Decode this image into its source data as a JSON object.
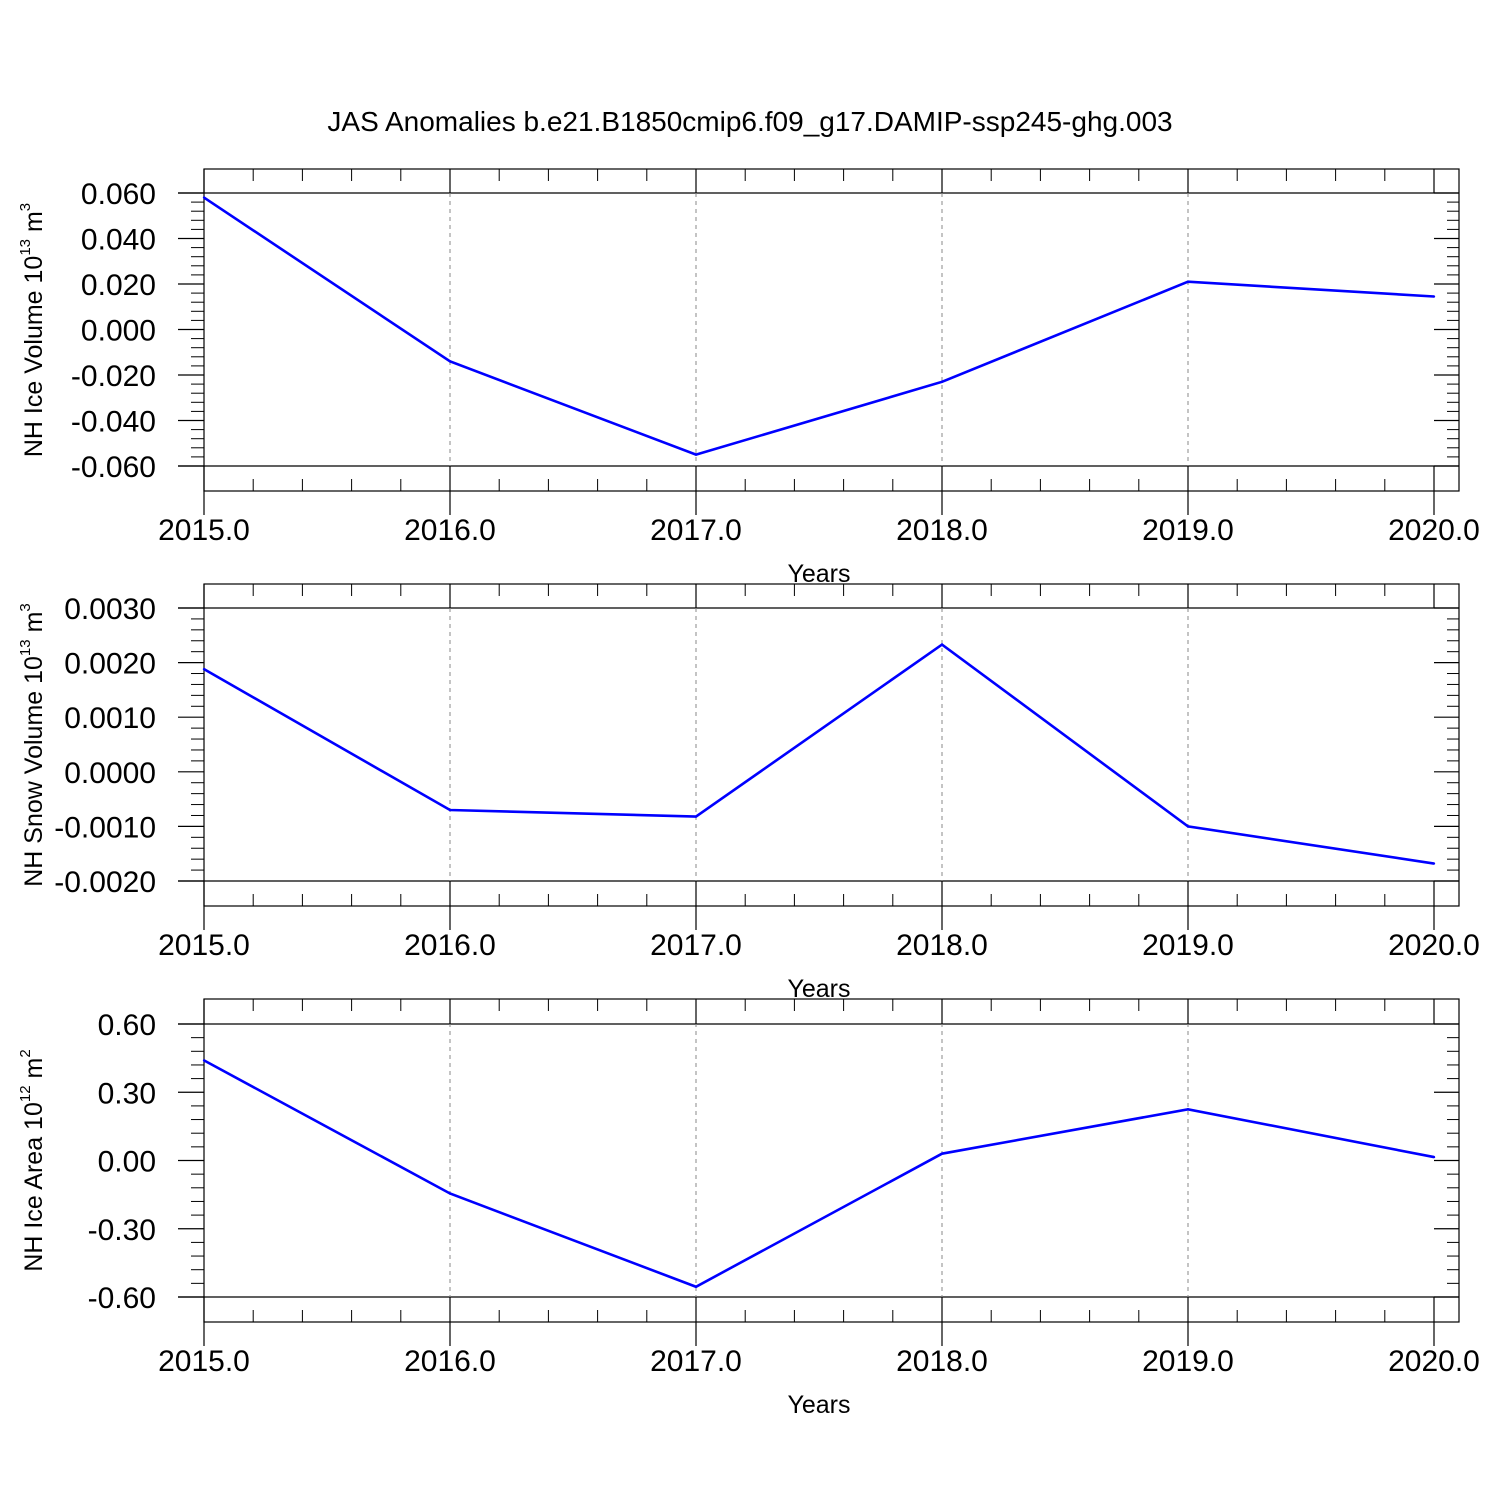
{
  "figure": {
    "title": "JAS Anomalies b.e21.B1850cmip6.f09_g17.DAMIP-ssp245-ghg.003",
    "line_color": "#0000ff"
  },
  "chart_data": [
    {
      "type": "line",
      "xlabel": "Years",
      "ylabel": {
        "prefix": "NH Ice Volume 10",
        "exponent": "13",
        "unit": " m",
        "unit_exponent": "3"
      },
      "xlim": [
        2015.0,
        2020.0
      ],
      "ylim": [
        -0.06,
        0.06
      ],
      "xticks": [
        "2015.0",
        "2016.0",
        "2017.0",
        "2018.0",
        "2019.0",
        "2020.0"
      ],
      "yticks": [
        "0.060",
        "0.040",
        "0.020",
        "0.000",
        "-0.020",
        "-0.040",
        "-0.060"
      ],
      "ytick_values": [
        0.06,
        0.04,
        0.02,
        0.0,
        -0.02,
        -0.04,
        -0.06
      ],
      "grid": "vertical-dashed",
      "series": [
        {
          "x": [
            2015,
            2016,
            2017,
            2018,
            2019,
            2020
          ],
          "values": [
            0.058,
            -0.014,
            -0.055,
            -0.023,
            0.021,
            0.0145
          ]
        }
      ]
    },
    {
      "type": "line",
      "xlabel": "Years",
      "ylabel": {
        "prefix": "NH Snow Volume 10",
        "exponent": "13",
        "unit": " m",
        "unit_exponent": "3"
      },
      "xlim": [
        2015.0,
        2020.0
      ],
      "ylim": [
        -0.002,
        0.003
      ],
      "xticks": [
        "2015.0",
        "2016.0",
        "2017.0",
        "2018.0",
        "2019.0",
        "2020.0"
      ],
      "yticks": [
        "0.0030",
        "0.0020",
        "0.0010",
        "0.0000",
        "-0.0010",
        "-0.0020"
      ],
      "ytick_values": [
        0.003,
        0.002,
        0.001,
        0.0,
        -0.001,
        -0.002
      ],
      "grid": "vertical-dashed",
      "series": [
        {
          "x": [
            2015,
            2016,
            2017,
            2018,
            2019,
            2020
          ],
          "values": [
            0.00188,
            -0.0007,
            -0.00082,
            0.00233,
            -0.001,
            -0.00168
          ]
        }
      ]
    },
    {
      "type": "line",
      "xlabel": "Years",
      "ylabel": {
        "prefix": "NH Ice Area 10",
        "exponent": "12",
        "unit": " m",
        "unit_exponent": "2"
      },
      "xlim": [
        2015.0,
        2020.0
      ],
      "ylim": [
        -0.6,
        0.6
      ],
      "xticks": [
        "2015.0",
        "2016.0",
        "2017.0",
        "2018.0",
        "2019.0",
        "2020.0"
      ],
      "yticks": [
        "0.60",
        "0.30",
        "0.00",
        "-0.30",
        "-0.60"
      ],
      "ytick_values": [
        0.6,
        0.3,
        0.0,
        -0.3,
        -0.6
      ],
      "grid": "vertical-dashed",
      "series": [
        {
          "x": [
            2015,
            2016,
            2017,
            2018,
            2019,
            2020
          ],
          "values": [
            0.44,
            -0.145,
            -0.555,
            0.03,
            0.225,
            0.015
          ]
        }
      ]
    }
  ]
}
